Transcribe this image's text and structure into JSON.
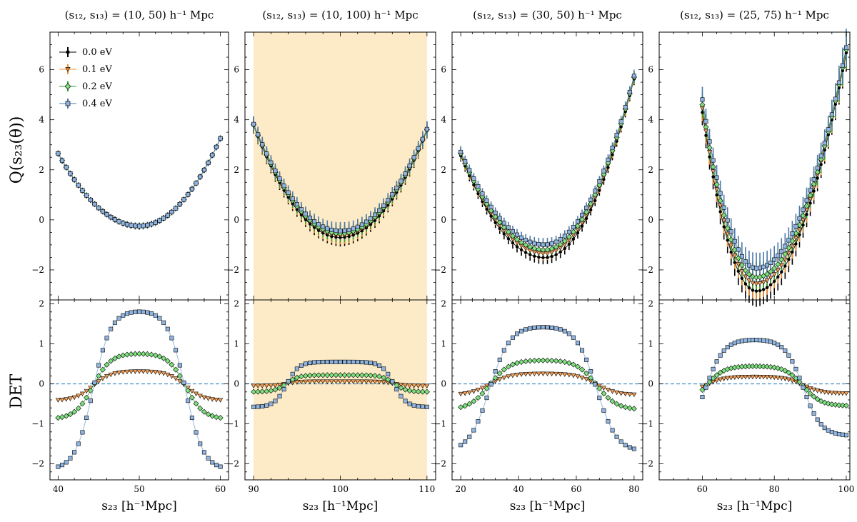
{
  "figure": {
    "ylabel_top": "Q(s₂₃(θ))",
    "ylabel_bottom": "DET",
    "xlabel": "s₂₃ [h⁻¹Mpc]"
  },
  "legend": [
    {
      "label": "0.0 eV",
      "color": "#000000",
      "marker": "dot"
    },
    {
      "label": "0.1 eV",
      "color": "#f28e2b",
      "marker": "triangle-down"
    },
    {
      "label": "0.2 eV",
      "color": "#2ca02c",
      "marker": "diamond"
    },
    {
      "label": "0.4 eV",
      "color": "#4c78a8",
      "marker": "square"
    }
  ],
  "colors": {
    "highlight": "#fdebc7",
    "zero_line": "#1f77b4",
    "det_line": "#7aa6d6"
  },
  "chart_data": [
    {
      "type": "line",
      "title": "(s₁₂, s₁₃) = (10, 50) h⁻¹ Mpc",
      "xlim": [
        39,
        61
      ],
      "xticks": [
        40,
        50,
        60
      ],
      "highlight": false,
      "top": {
        "ylim": [
          -3.2,
          7.5
        ],
        "yticks": [
          -2,
          0,
          2,
          4,
          6
        ],
        "vertex": 50,
        "vmin": -0.25,
        "left": 2.65,
        "right": 3.25,
        "spread": 0.0,
        "err": 0.08
      },
      "bottom": {
        "ylim": [
          -2.4,
          2.1
        ],
        "yticks": [
          -2,
          -1,
          0,
          1,
          2
        ],
        "edges": [
          44.3,
          55.7
        ],
        "width": 1.1,
        "series": [
          {
            "name": "0.1 eV",
            "plateau": 0.32,
            "tail": -0.42
          },
          {
            "name": "0.2 eV",
            "plateau": 0.77,
            "tail": -0.88
          },
          {
            "name": "0.4 eV",
            "plateau": 1.85,
            "tail": -2.15
          }
        ]
      }
    },
    {
      "type": "line",
      "title": "(s₁₂, s₁₃) = (10, 100) h⁻¹ Mpc",
      "xlim": [
        89,
        111
      ],
      "xticks": [
        90,
        100,
        110
      ],
      "highlight": true,
      "top": {
        "ylim": [
          -3.2,
          7.5
        ],
        "yticks": [
          -2,
          0,
          2,
          4,
          6
        ],
        "vertex": 100,
        "vmin": -0.55,
        "left": 3.8,
        "right": 3.6,
        "spread": 0.08,
        "err": 0.2
      },
      "bottom": {
        "ylim": [
          -2.4,
          2.1
        ],
        "yticks": [
          -2,
          -1,
          0,
          1,
          2
        ],
        "edges": [
          93.8,
          106.2
        ],
        "width": 0.7,
        "series": [
          {
            "name": "0.1 eV",
            "plateau": 0.06,
            "tail": -0.05
          },
          {
            "name": "0.2 eV",
            "plateau": 0.22,
            "tail": -0.2
          },
          {
            "name": "0.4 eV",
            "plateau": 0.55,
            "tail": -0.58
          }
        ]
      }
    },
    {
      "type": "line",
      "title": "(s₁₂, s₁₃) = (30, 50) h⁻¹ Mpc",
      "xlim": [
        17,
        83
      ],
      "xticks": [
        20,
        40,
        60,
        80
      ],
      "highlight": false,
      "top": {
        "ylim": [
          -3.2,
          7.5
        ],
        "yticks": [
          -2,
          0,
          2,
          4,
          6
        ],
        "vertex": 49,
        "vmin": -1.2,
        "left": 2.65,
        "right": 5.7,
        "spread": 0.16,
        "err": 0.15
      },
      "bottom": {
        "ylim": [
          -2.4,
          2.1
        ],
        "yticks": [
          -2,
          -1,
          0,
          1,
          2
        ],
        "edges": [
          30,
          67
        ],
        "width": 3.5,
        "series": [
          {
            "name": "0.1 eV",
            "plateau": 0.26,
            "tail": -0.28
          },
          {
            "name": "0.2 eV",
            "plateau": 0.6,
            "tail": -0.65
          },
          {
            "name": "0.4 eV",
            "plateau": 1.45,
            "tail": -1.7
          }
        ]
      }
    },
    {
      "type": "line",
      "title": "(s₁₂, s₁₃) = (25, 75) h⁻¹ Mpc",
      "xlim": [
        48,
        101
      ],
      "xticks": [
        60,
        80,
        100
      ],
      "highlight": false,
      "top": {
        "ylim": [
          -3.2,
          7.5
        ],
        "yticks": [
          -2,
          0,
          2,
          4,
          6
        ],
        "vertex": 75,
        "vmin": -2.3,
        "left": 4.6,
        "right": 6.8,
        "spread": 0.28,
        "err": 0.35
      },
      "bottom": {
        "ylim": [
          -2.4,
          2.1
        ],
        "yticks": [
          -2,
          -1,
          0,
          1,
          2
        ],
        "edges": [
          61,
          88
        ],
        "width": 2.5,
        "series": [
          {
            "name": "0.1 eV",
            "plateau": 0.18,
            "tail": -0.24
          },
          {
            "name": "0.2 eV",
            "plateau": 0.45,
            "tail": -0.55
          },
          {
            "name": "0.4 eV",
            "plateau": 1.12,
            "tail": -1.3
          }
        ]
      }
    }
  ]
}
